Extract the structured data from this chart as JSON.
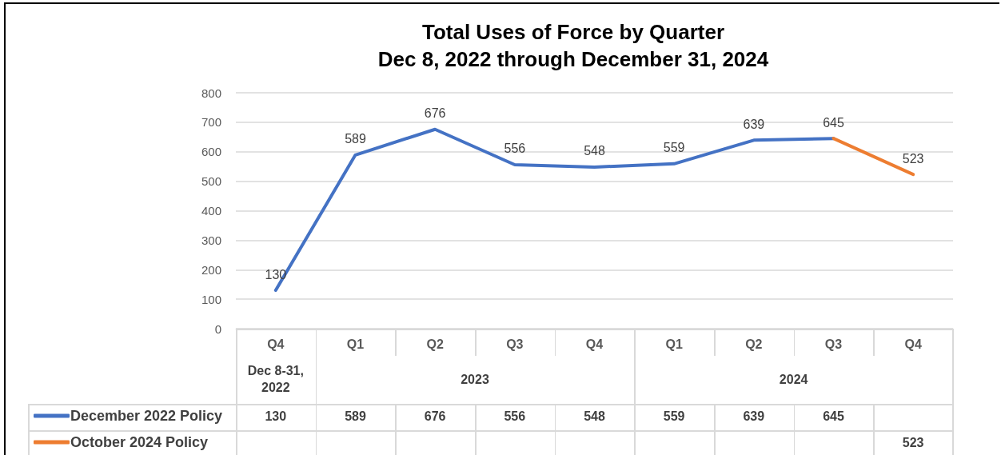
{
  "chart_data": {
    "type": "line",
    "title": "Total Uses of Force by Quarter",
    "subtitle": "Dec 8, 2022 through December 31, 2024",
    "categories": [
      "Q4",
      "Q1",
      "Q2",
      "Q3",
      "Q4",
      "Q1",
      "Q2",
      "Q3",
      "Q4"
    ],
    "annotations": [
      "Dec 8-31, 2022",
      "2023",
      "2024"
    ],
    "series": [
      {
        "name": "December 2022 Policy",
        "color": "#4472c4",
        "values": [
          130,
          589,
          676,
          556,
          548,
          559,
          639,
          645,
          null
        ],
        "value_labels": [
          "130",
          "589",
          "676",
          "556",
          "548",
          "559",
          "639",
          "645",
          null
        ]
      },
      {
        "name": "October 2024 Policy",
        "color": "#ed7d31",
        "values": [
          null,
          null,
          null,
          null,
          null,
          null,
          null,
          645,
          523
        ],
        "value_labels": [
          null,
          null,
          null,
          null,
          null,
          null,
          null,
          null,
          "523"
        ]
      }
    ],
    "ylim": [
      0,
      800
    ],
    "yticks": [
      0,
      100,
      200,
      300,
      400,
      500,
      600,
      700,
      800
    ],
    "grid": "y",
    "legend": "bottom",
    "marker": "none",
    "line_style": "solid"
  }
}
